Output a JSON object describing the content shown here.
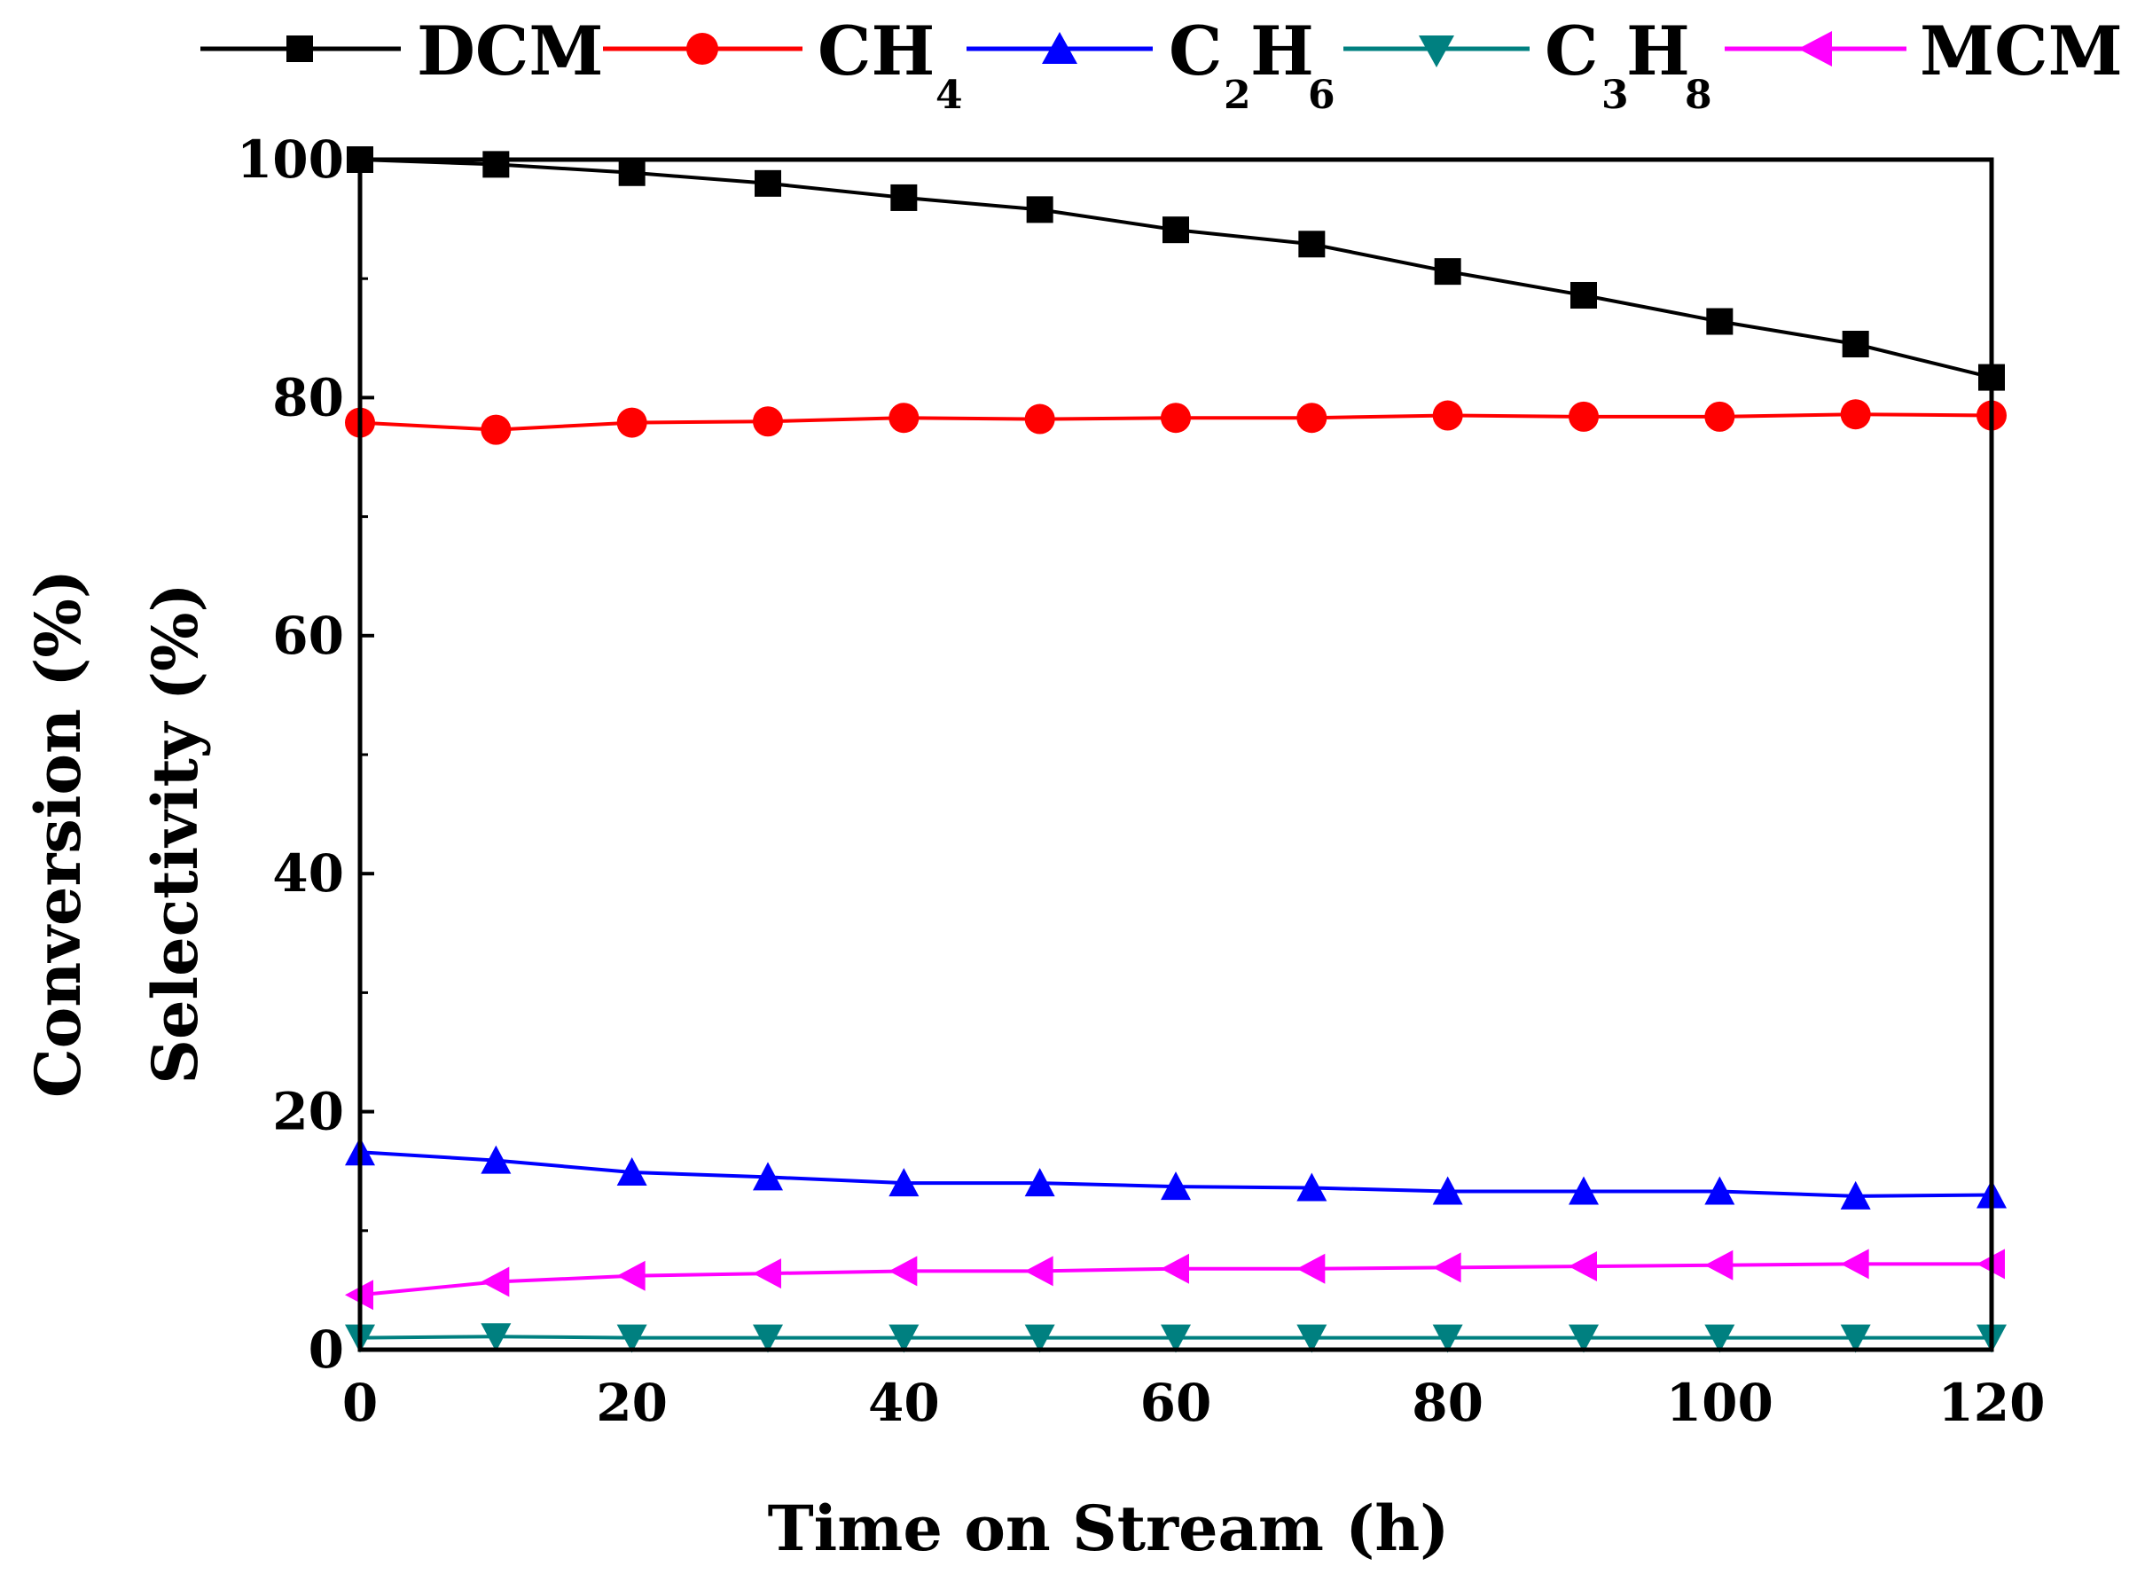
{
  "chart_data": {
    "type": "line",
    "title": "",
    "xlabel": "Time on Stream  (h)",
    "ylabel_lines": [
      "Conversion (%)",
      "Selectivity (%)"
    ],
    "xlim": [
      0,
      120
    ],
    "ylim": [
      0,
      100
    ],
    "x_ticks": [
      0,
      20,
      40,
      60,
      80,
      100,
      120
    ],
    "y_ticks": [
      0,
      20,
      40,
      60,
      80,
      100
    ],
    "x_tick_labels": [
      "0",
      "20",
      "40",
      "60",
      "80",
      "100",
      "120"
    ],
    "y_tick_labels": [
      "0",
      "20",
      "40",
      "60",
      "80",
      "100"
    ],
    "grid": false,
    "legend_position": "top",
    "x": [
      0,
      10,
      20,
      30,
      40,
      50,
      60,
      70,
      80,
      90,
      100,
      110,
      120
    ],
    "series": [
      {
        "name": "DCM",
        "label_main": "DCM",
        "label_sub": "",
        "marker": "square",
        "color": "#000000",
        "values": [
          100.0,
          99.6,
          98.9,
          98.0,
          96.8,
          95.8,
          94.1,
          92.9,
          90.6,
          88.6,
          86.4,
          84.5,
          81.7
        ]
      },
      {
        "name": "CH4",
        "label_main": "CH",
        "label_sub": "4",
        "marker": "circle",
        "color": "#ff0000",
        "values": [
          77.9,
          77.3,
          77.9,
          78.0,
          78.3,
          78.2,
          78.3,
          78.3,
          78.5,
          78.4,
          78.4,
          78.6,
          78.5
        ]
      },
      {
        "name": "C2H6",
        "label_main": "CH",
        "label_sub": "2",
        "label_sub2": "6",
        "marker": "triangle-up",
        "color": "#0000ff",
        "values": [
          16.6,
          15.9,
          14.9,
          14.5,
          14.0,
          14.0,
          13.7,
          13.6,
          13.3,
          13.3,
          13.3,
          12.9,
          13.0
        ]
      },
      {
        "name": "C3H8",
        "label_main": "CH",
        "label_sub": "3",
        "label_sub2": "8",
        "marker": "triangle-down",
        "color": "#008080",
        "values": [
          1.0,
          1.1,
          1.0,
          1.0,
          1.0,
          1.0,
          1.0,
          1.0,
          1.0,
          1.0,
          1.0,
          1.0,
          1.0
        ]
      },
      {
        "name": "MCM",
        "label_main": "MCM",
        "label_sub": "",
        "marker": "triangle-left",
        "color": "#ff00ff",
        "values": [
          4.6,
          5.7,
          6.2,
          6.4,
          6.6,
          6.6,
          6.8,
          6.8,
          6.9,
          7.0,
          7.1,
          7.2,
          7.2
        ]
      }
    ]
  },
  "legend": {
    "dcm": "DCM",
    "ch4_main": "CH",
    "ch4_sub": "4",
    "c2h6_c": "C",
    "c2h6_sub1": "2",
    "c2h6_h": "H",
    "c2h6_sub2": "6",
    "c3h8_c": "C",
    "c3h8_sub1": "3",
    "c3h8_h": "H",
    "c3h8_sub2": "8",
    "mcm": "MCM"
  }
}
